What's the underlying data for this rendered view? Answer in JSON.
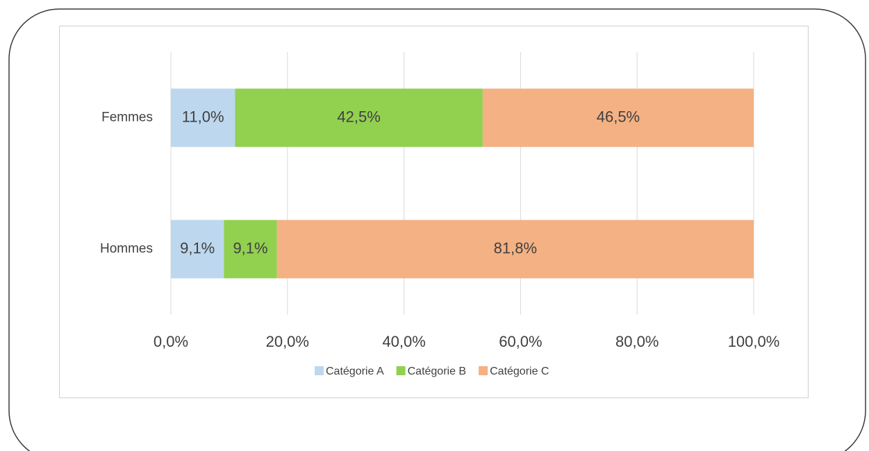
{
  "chart_data": {
    "type": "stacked-bar-horizontal",
    "categories": [
      "Femmes",
      "Hommes"
    ],
    "series": [
      {
        "name": "Catégorie A",
        "color": "#bdd7ee",
        "values": [
          11.0,
          9.1
        ],
        "value_labels": [
          "11,0%",
          "9,1%"
        ]
      },
      {
        "name": "Catégorie B",
        "color": "#92d050",
        "values": [
          42.5,
          9.1
        ],
        "value_labels": [
          "42,5%",
          "9,1%"
        ]
      },
      {
        "name": "Catégorie C",
        "color": "#f4b183",
        "values": [
          46.5,
          81.8
        ],
        "value_labels": [
          "46,5%",
          "81,8%"
        ]
      }
    ],
    "xlim": [
      0,
      100
    ],
    "xticks": [
      {
        "value": 0,
        "label": "0,0%"
      },
      {
        "value": 20,
        "label": "20,0%"
      },
      {
        "value": 40,
        "label": "40,0%"
      },
      {
        "value": 60,
        "label": "60,0%"
      },
      {
        "value": 80,
        "label": "80,0%"
      },
      {
        "value": 100,
        "label": "100,0%"
      }
    ],
    "grid": true,
    "legend": "bottom"
  }
}
